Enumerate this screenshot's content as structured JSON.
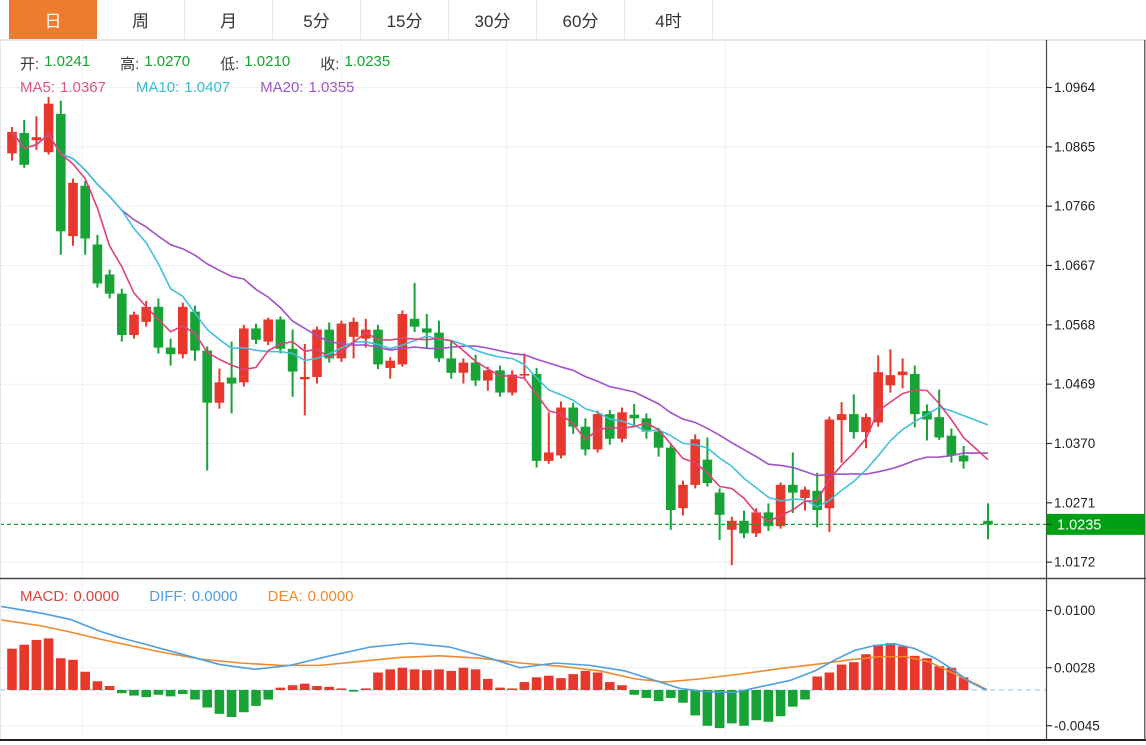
{
  "tabs": {
    "items": [
      {
        "label": "日",
        "active": true
      },
      {
        "label": "周",
        "active": false
      },
      {
        "label": "月",
        "active": false
      },
      {
        "label": "5分",
        "active": false
      },
      {
        "label": "15分",
        "active": false
      },
      {
        "label": "30分",
        "active": false
      },
      {
        "label": "60分",
        "active": false
      },
      {
        "label": "4时",
        "active": false
      }
    ]
  },
  "legend": {
    "ohlc": [
      {
        "label": "开:",
        "value": "1.0241"
      },
      {
        "label": "高:",
        "value": "1.0270"
      },
      {
        "label": "低:",
        "value": "1.0210"
      },
      {
        "label": "收:",
        "value": "1.0235"
      }
    ],
    "ma": [
      {
        "label": "MA5:",
        "value": "1.0367",
        "color": "#dd5580"
      },
      {
        "label": "MA10:",
        "value": "1.0407",
        "color": "#3bb9d4"
      },
      {
        "label": "MA20:",
        "value": "1.0355",
        "color": "#a055c8"
      }
    ],
    "macd": [
      {
        "label": "MACD:",
        "value": "0.0000",
        "color": "#d9453d"
      },
      {
        "label": "DIFF:",
        "value": "0.0000",
        "color": "#4f9fe0"
      },
      {
        "label": "DEA:",
        "value": "0.0000",
        "color": "#ef8a2e"
      }
    ]
  },
  "price_axis": {
    "ticks": [
      1.0964,
      1.0865,
      1.0766,
      1.0667,
      1.0568,
      1.0469,
      1.037,
      1.0271,
      1.0172
    ],
    "last_price": "1.0235"
  },
  "macd_axis": {
    "ticks": [
      0.01,
      0.0028,
      -0.0045
    ]
  },
  "colors": {
    "up_red": "#e6382c",
    "down_green": "#17a335",
    "ma5": "#e0417b",
    "ma10": "#41c0dd",
    "ma20": "#a24fc8",
    "diff_blue": "#4f9fe0",
    "dea_orange": "#ef8a2e",
    "tab_active_bg": "#ee7c30",
    "badge_bg": "#00a014",
    "badge_text": "#ffffff",
    "legend_label": "#3b3b3b",
    "legend_value_green": "#17a32f",
    "grid": "#edf1f6",
    "frame_dark": "#444444",
    "frame_light": "#e2e6ea",
    "tick_text": "#222222",
    "price_dash": "#14a02c",
    "zero_dash": "#aacdee"
  },
  "chart_data": {
    "type": "candlestick",
    "title": "",
    "ylabel": "",
    "price_ylim": [
      1.014,
      1.099
    ],
    "macd_ylim": [
      -0.006,
      0.0115
    ],
    "grid": true,
    "x_gridlines": [
      82,
      342,
      507,
      725,
      988
    ],
    "current_price": 1.0235,
    "ma_periods": [
      5,
      10,
      20
    ],
    "candles": [
      [
        1.0854,
        1.0898,
        1.0842,
        1.089
      ],
      [
        1.0888,
        1.091,
        1.083,
        1.0835
      ],
      [
        1.0876,
        1.0916,
        1.086,
        1.0881
      ],
      [
        1.0856,
        1.0948,
        1.0852,
        1.0937
      ],
      [
        1.092,
        1.0942,
        1.0685,
        1.0724
      ],
      [
        1.0716,
        1.0812,
        1.07,
        1.0805
      ],
      [
        1.08,
        1.0808,
        1.0685,
        1.0712
      ],
      [
        1.0702,
        1.0718,
        1.063,
        1.0637
      ],
      [
        1.0652,
        1.066,
        1.0612,
        1.062
      ],
      [
        1.062,
        1.0628,
        1.054,
        1.0551
      ],
      [
        1.0551,
        1.059,
        1.0545,
        1.0585
      ],
      [
        1.0573,
        1.0608,
        1.0565,
        1.0598
      ],
      [
        1.0598,
        1.0612,
        1.052,
        1.053
      ],
      [
        1.053,
        1.0545,
        1.05,
        1.0519
      ],
      [
        1.0519,
        1.0605,
        1.0512,
        1.0598
      ],
      [
        1.059,
        1.06,
        1.0508,
        1.0525
      ],
      [
        1.0525,
        1.0532,
        1.0325,
        1.0438
      ],
      [
        1.0438,
        1.0495,
        1.0428,
        1.0472
      ],
      [
        1.048,
        1.054,
        1.042,
        1.047
      ],
      [
        1.0472,
        1.0568,
        1.0465,
        1.0562
      ],
      [
        1.0562,
        1.057,
        1.0536,
        1.0543
      ],
      [
        1.054,
        1.058,
        1.0534,
        1.0577
      ],
      [
        1.0577,
        1.0582,
        1.052,
        1.0528
      ],
      [
        1.0528,
        1.056,
        1.0448,
        1.049
      ],
      [
        1.0477,
        1.0536,
        1.0417,
        1.0481
      ],
      [
        1.0481,
        1.0565,
        1.047,
        1.056
      ],
      [
        1.056,
        1.0572,
        1.0505,
        1.0512
      ],
      [
        1.0512,
        1.0575,
        1.0506,
        1.057
      ],
      [
        1.0548,
        1.058,
        1.0512,
        1.0573
      ],
      [
        1.0545,
        1.0578,
        1.053,
        1.056
      ],
      [
        1.056,
        1.0568,
        1.0494,
        1.0502
      ],
      [
        1.0496,
        1.0514,
        1.0478,
        1.0508
      ],
      [
        1.0502,
        1.0592,
        1.0498,
        1.0586
      ],
      [
        1.0578,
        1.0638,
        1.0556,
        1.0565
      ],
      [
        1.0562,
        1.0586,
        1.053,
        1.0555
      ],
      [
        1.0555,
        1.0575,
        1.0506,
        1.0512
      ],
      [
        1.0512,
        1.0542,
        1.0478,
        1.0488
      ],
      [
        1.0488,
        1.0512,
        1.047,
        1.0505
      ],
      [
        1.0505,
        1.0518,
        1.0466,
        1.0475
      ],
      [
        1.0475,
        1.0498,
        1.0458,
        1.0492
      ],
      [
        1.0492,
        1.05,
        1.0448,
        1.0455
      ],
      [
        1.0455,
        1.0492,
        1.045,
        1.0485
      ],
      [
        1.0485,
        1.052,
        1.0478,
        1.0486
      ],
      [
        1.0486,
        1.0496,
        1.033,
        1.0341
      ],
      [
        1.0341,
        1.0422,
        1.0336,
        1.0355
      ],
      [
        1.035,
        1.044,
        1.0345,
        1.043
      ],
      [
        1.043,
        1.0438,
        1.0386,
        1.0398
      ],
      [
        1.0398,
        1.0412,
        1.035,
        1.036
      ],
      [
        1.036,
        1.0425,
        1.0355,
        1.0419
      ],
      [
        1.0419,
        1.0426,
        1.0368,
        1.0378
      ],
      [
        1.0378,
        1.043,
        1.0372,
        1.0422
      ],
      [
        1.0418,
        1.0436,
        1.04,
        1.0412
      ],
      [
        1.0412,
        1.042,
        1.0378,
        1.039
      ],
      [
        1.039,
        1.0396,
        1.0348,
        1.0363
      ],
      [
        1.0363,
        1.037,
        1.0226,
        1.0259
      ],
      [
        1.0262,
        1.0308,
        1.025,
        1.0301
      ],
      [
        1.0301,
        1.0385,
        1.0295,
        1.0377
      ],
      [
        1.0343,
        1.038,
        1.0298,
        1.0304
      ],
      [
        1.0288,
        1.0295,
        1.0209,
        1.0251
      ],
      [
        1.0226,
        1.0248,
        1.0167,
        1.0241
      ],
      [
        1.0241,
        1.0258,
        1.0212,
        1.022
      ],
      [
        1.022,
        1.0262,
        1.0214,
        1.0255
      ],
      [
        1.0255,
        1.027,
        1.0224,
        1.0232
      ],
      [
        1.0232,
        1.0305,
        1.0228,
        1.0301
      ],
      [
        1.0301,
        1.0355,
        1.0254,
        1.0288
      ],
      [
        1.0279,
        1.0298,
        1.0258,
        1.0293
      ],
      [
        1.0291,
        1.0321,
        1.023,
        1.0259
      ],
      [
        1.0262,
        1.0415,
        1.0222,
        1.041
      ],
      [
        1.0409,
        1.0439,
        1.0338,
        1.0419
      ],
      [
        1.0419,
        1.0452,
        1.0378,
        1.0389
      ],
      [
        1.0389,
        1.042,
        1.0362,
        1.0414
      ],
      [
        1.0405,
        1.0517,
        1.0398,
        1.0489
      ],
      [
        1.0467,
        1.0527,
        1.0455,
        1.0484
      ],
      [
        1.0484,
        1.0512,
        1.0462,
        1.049
      ],
      [
        1.0486,
        1.05,
        1.0397,
        1.0419
      ],
      [
        1.0424,
        1.0435,
        1.0375,
        1.041
      ],
      [
        1.0414,
        1.046,
        1.0376,
        1.038
      ],
      [
        1.0383,
        1.0395,
        1.0338,
        1.035
      ],
      [
        1.035,
        1.0366,
        1.0328,
        1.034
      ],
      null,
      [
        1.0241,
        1.027,
        1.021,
        1.0235
      ]
    ],
    "macd": {
      "hist": [
        0.0052,
        0.0057,
        0.0063,
        0.0065,
        0.004,
        0.0038,
        0.0023,
        0.0011,
        0.0005,
        -0.0004,
        -0.0007,
        -0.0009,
        -0.0006,
        -0.0008,
        -0.0005,
        -0.0012,
        -0.0022,
        -0.003,
        -0.0034,
        -0.0028,
        -0.002,
        -0.0012,
        0.0003,
        0.0006,
        0.0008,
        0.0005,
        0.0004,
        0.0002,
        -0.0002,
        0.0002,
        0.0022,
        0.0026,
        0.0028,
        0.0026,
        0.0025,
        0.0026,
        0.0024,
        0.0028,
        0.0026,
        0.0014,
        0.0003,
        0.0002,
        0.001,
        0.0016,
        0.0018,
        0.0015,
        0.002,
        0.0024,
        0.0022,
        0.001,
        0.0006,
        -0.0006,
        -0.001,
        -0.0014,
        -0.001,
        -0.0016,
        -0.0032,
        -0.0045,
        -0.0048,
        -0.0042,
        -0.0045,
        -0.0038,
        -0.004,
        -0.0033,
        -0.0021,
        -0.0012,
        0.0017,
        0.0022,
        0.0032,
        0.0035,
        0.0045,
        0.0057,
        0.0059,
        0.0055,
        0.0043,
        0.004,
        0.003,
        0.0028,
        0.0016,
        0,
        0
      ],
      "diff": [
        [
          2,
          0.0105
        ],
        [
          40,
          0.0097
        ],
        [
          70,
          0.0089
        ],
        [
          100,
          0.0074
        ],
        [
          120,
          0.0066
        ],
        [
          150,
          0.0056
        ],
        [
          185,
          0.0044
        ],
        [
          220,
          0.0032
        ],
        [
          255,
          0.0026
        ],
        [
          290,
          0.0031
        ],
        [
          330,
          0.0043
        ],
        [
          370,
          0.0054
        ],
        [
          410,
          0.0059
        ],
        [
          450,
          0.0054
        ],
        [
          490,
          0.004
        ],
        [
          520,
          0.0028
        ],
        [
          555,
          0.0034
        ],
        [
          590,
          0.0031
        ],
        [
          625,
          0.0024
        ],
        [
          655,
          0.0012
        ],
        [
          680,
          0.0002
        ],
        [
          705,
          -0.0002
        ],
        [
          735,
          -0.0003
        ],
        [
          760,
          0.0004
        ],
        [
          790,
          0.0012
        ],
        [
          815,
          0.0024
        ],
        [
          835,
          0.0038
        ],
        [
          855,
          0.005
        ],
        [
          875,
          0.0056
        ],
        [
          895,
          0.0058
        ],
        [
          915,
          0.0052
        ],
        [
          935,
          0.004
        ],
        [
          955,
          0.0024
        ],
        [
          970,
          0.001
        ],
        [
          986,
          0.0
        ]
      ],
      "dea": [
        [
          2,
          0.0088
        ],
        [
          40,
          0.0081
        ],
        [
          70,
          0.0073
        ],
        [
          100,
          0.0064
        ],
        [
          130,
          0.0056
        ],
        [
          160,
          0.0048
        ],
        [
          200,
          0.0039
        ],
        [
          240,
          0.0034
        ],
        [
          280,
          0.0031
        ],
        [
          320,
          0.0031
        ],
        [
          360,
          0.0036
        ],
        [
          400,
          0.0041
        ],
        [
          440,
          0.0043
        ],
        [
          480,
          0.004
        ],
        [
          520,
          0.0034
        ],
        [
          560,
          0.003
        ],
        [
          600,
          0.0024
        ],
        [
          635,
          0.0014
        ],
        [
          665,
          0.001
        ],
        [
          700,
          0.0014
        ],
        [
          740,
          0.002
        ],
        [
          780,
          0.0027
        ],
        [
          820,
          0.0033
        ],
        [
          850,
          0.0038
        ],
        [
          880,
          0.0042
        ],
        [
          905,
          0.0042
        ],
        [
          930,
          0.0035
        ],
        [
          955,
          0.002
        ],
        [
          975,
          0.0008
        ],
        [
          986,
          0.0001
        ]
      ]
    }
  }
}
